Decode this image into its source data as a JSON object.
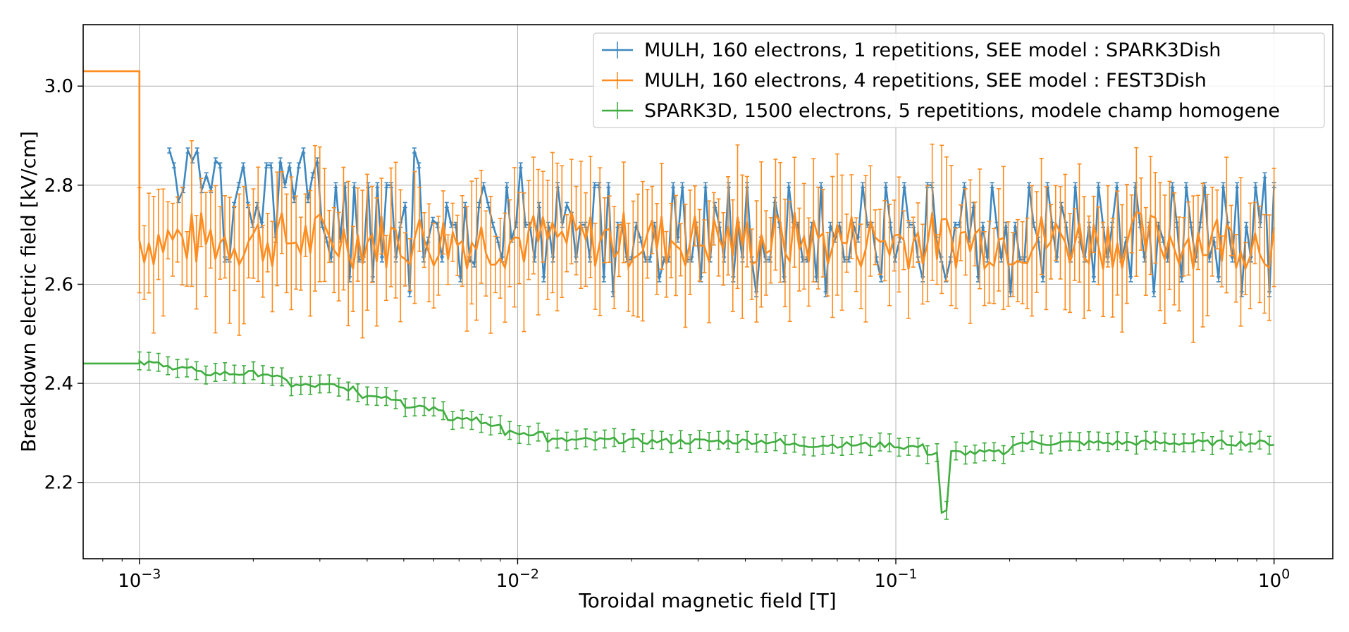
{
  "chart_data": {
    "type": "line",
    "xscale": "log",
    "xlabel": "Toroidal magnetic field [T]",
    "ylabel": "Breakdown electric field [kV/cm]",
    "xlim": [
      0.00071,
      1.43
    ],
    "ylim": [
      2.046,
      3.124
    ],
    "grid": true,
    "legend_position": "top-right",
    "xticks": [
      {
        "value": 0.001,
        "base": "10",
        "exp": "−3"
      },
      {
        "value": 0.01,
        "base": "10",
        "exp": "−2"
      },
      {
        "value": 0.1,
        "base": "10",
        "exp": "−1"
      },
      {
        "value": 1,
        "base": "10",
        "exp": "0"
      }
    ],
    "yticks": [
      {
        "value": 2.2,
        "label": "2.2"
      },
      {
        "value": 2.4,
        "label": "2.4"
      },
      {
        "value": 2.6,
        "label": "2.6"
      },
      {
        "value": 2.8,
        "label": "2.8"
      },
      {
        "value": 3.0,
        "label": "3.0"
      }
    ],
    "series": [
      {
        "name": "MULH, 160 electrons, 1 repetitions, SEE model : SPARK3Dish",
        "color": "#3f88bf",
        "x_range": [
          0.0012,
          1.0
        ],
        "points": 240,
        "pattern": "noisy",
        "center": 2.71,
        "amplitude": 0.1,
        "y": [
          2.87,
          2.84,
          2.77,
          2.79,
          2.87,
          2.85,
          2.87,
          2.79,
          2.82,
          2.79,
          2.85,
          2.84,
          2.65,
          2.65,
          2.76,
          2.8,
          2.84,
          2.76,
          2.72,
          2.76,
          2.72,
          2.84,
          2.84,
          2.69,
          2.85,
          2.8,
          2.84,
          2.77,
          2.84,
          2.87,
          2.77,
          2.82,
          2.85,
          2.72,
          2.69,
          2.65,
          2.8,
          2.69,
          2.8,
          2.61,
          2.8,
          2.65,
          2.65,
          2.8,
          2.61,
          2.8,
          2.65,
          2.8,
          2.8,
          2.65,
          2.72,
          2.76,
          2.58,
          2.87,
          2.84,
          2.65,
          2.69,
          2.73,
          2.72,
          2.65,
          2.76,
          2.72,
          2.72,
          2.61,
          2.76,
          2.65,
          2.64,
          2.76,
          2.8,
          2.76,
          2.72,
          2.69,
          2.65,
          2.8,
          2.69,
          2.72,
          2.84,
          2.72,
          2.72,
          2.65,
          2.76,
          2.61,
          2.72,
          2.65,
          2.8,
          2.72,
          2.76,
          2.74,
          2.65,
          2.72,
          2.72,
          2.65,
          2.8,
          2.8,
          2.61,
          2.8,
          2.58,
          2.72,
          2.72,
          2.65,
          2.65,
          2.72,
          2.69,
          2.65,
          2.65,
          2.72,
          2.61,
          2.65,
          2.65,
          2.8,
          2.69,
          2.8,
          2.65,
          2.65,
          2.72,
          2.61,
          2.8,
          2.65,
          2.76,
          2.72,
          2.65,
          2.8,
          2.61,
          2.72,
          2.65,
          2.8,
          2.65,
          2.58,
          2.69,
          2.65,
          2.65,
          2.77,
          2.72,
          2.61,
          2.8,
          2.72,
          2.72,
          2.65,
          2.65,
          2.72,
          2.61,
          2.8,
          2.58,
          2.72,
          2.69,
          2.72,
          2.65,
          2.65,
          2.72,
          2.69,
          2.8,
          2.72,
          2.72,
          2.65,
          2.61,
          2.8,
          2.72,
          2.65,
          2.69,
          2.8,
          2.72,
          2.72,
          2.65,
          2.61,
          2.8,
          2.8,
          2.69,
          2.65,
          2.61,
          2.65,
          2.72,
          2.72,
          2.8,
          2.69,
          2.76,
          2.61,
          2.72,
          2.65,
          2.8,
          2.72,
          2.65,
          2.72,
          2.58,
          2.72,
          2.65,
          2.65,
          2.8,
          2.72,
          2.69,
          2.61,
          2.8,
          2.72,
          2.65,
          2.76,
          2.72,
          2.65,
          2.8,
          2.69,
          2.65,
          2.72,
          2.61,
          2.8,
          2.72,
          2.65,
          2.72,
          2.8,
          2.65,
          2.69,
          2.61,
          2.8,
          2.72,
          2.65,
          2.72,
          2.58,
          2.72,
          2.69,
          2.65,
          2.8,
          2.72,
          2.61,
          2.8,
          2.72,
          2.65,
          2.72,
          2.8,
          2.65,
          2.69,
          2.61,
          2.8,
          2.72,
          2.65,
          2.8,
          2.58,
          2.72,
          2.65,
          2.8,
          2.72,
          2.82,
          2.58,
          2.8
        ],
        "err": 0.005
      },
      {
        "name": "MULH, 160 electrons, 4 repetitions, SEE model : FEST3Dish",
        "color": "#ff8c1e",
        "x_before_min": 3.03,
        "x_range": [
          0.001,
          1.0
        ],
        "points": 240,
        "pattern": "noisy",
        "center": 2.69,
        "amplitude": 0.06,
        "err_range": [
          0.05,
          0.15
        ]
      },
      {
        "name": "SPARK3D, 1500 electrons, 5 repetitions, modele champ homogene",
        "color": "#3fae3f",
        "x_before_min": 2.44,
        "x_range": [
          0.001,
          1.0
        ],
        "points": 240,
        "pattern": "stepdown",
        "levels": [
          {
            "x": 0.001,
            "y": 2.44
          },
          {
            "x": 0.0012,
            "y": 2.43
          },
          {
            "x": 0.0014,
            "y": 2.42
          },
          {
            "x": 0.002,
            "y": 2.42
          },
          {
            "x": 0.0022,
            "y": 2.41
          },
          {
            "x": 0.0025,
            "y": 2.395
          },
          {
            "x": 0.0033,
            "y": 2.39
          },
          {
            "x": 0.0037,
            "y": 2.375
          },
          {
            "x": 0.0046,
            "y": 2.37
          },
          {
            "x": 0.005,
            "y": 2.355
          },
          {
            "x": 0.0058,
            "y": 2.35
          },
          {
            "x": 0.0065,
            "y": 2.33
          },
          {
            "x": 0.008,
            "y": 2.315
          },
          {
            "x": 0.009,
            "y": 2.3
          },
          {
            "x": 0.012,
            "y": 2.285
          },
          {
            "x": 0.02,
            "y": 2.283
          },
          {
            "x": 0.05,
            "y": 2.276
          },
          {
            "x": 0.1,
            "y": 2.272
          },
          {
            "x": 0.12,
            "y": 2.26
          },
          {
            "x": 0.13,
            "y": 2.14
          },
          {
            "x": 0.14,
            "y": 2.26
          },
          {
            "x": 0.2,
            "y": 2.28
          },
          {
            "x": 1.0,
            "y": 2.278
          }
        ],
        "err": 0.018
      }
    ]
  }
}
